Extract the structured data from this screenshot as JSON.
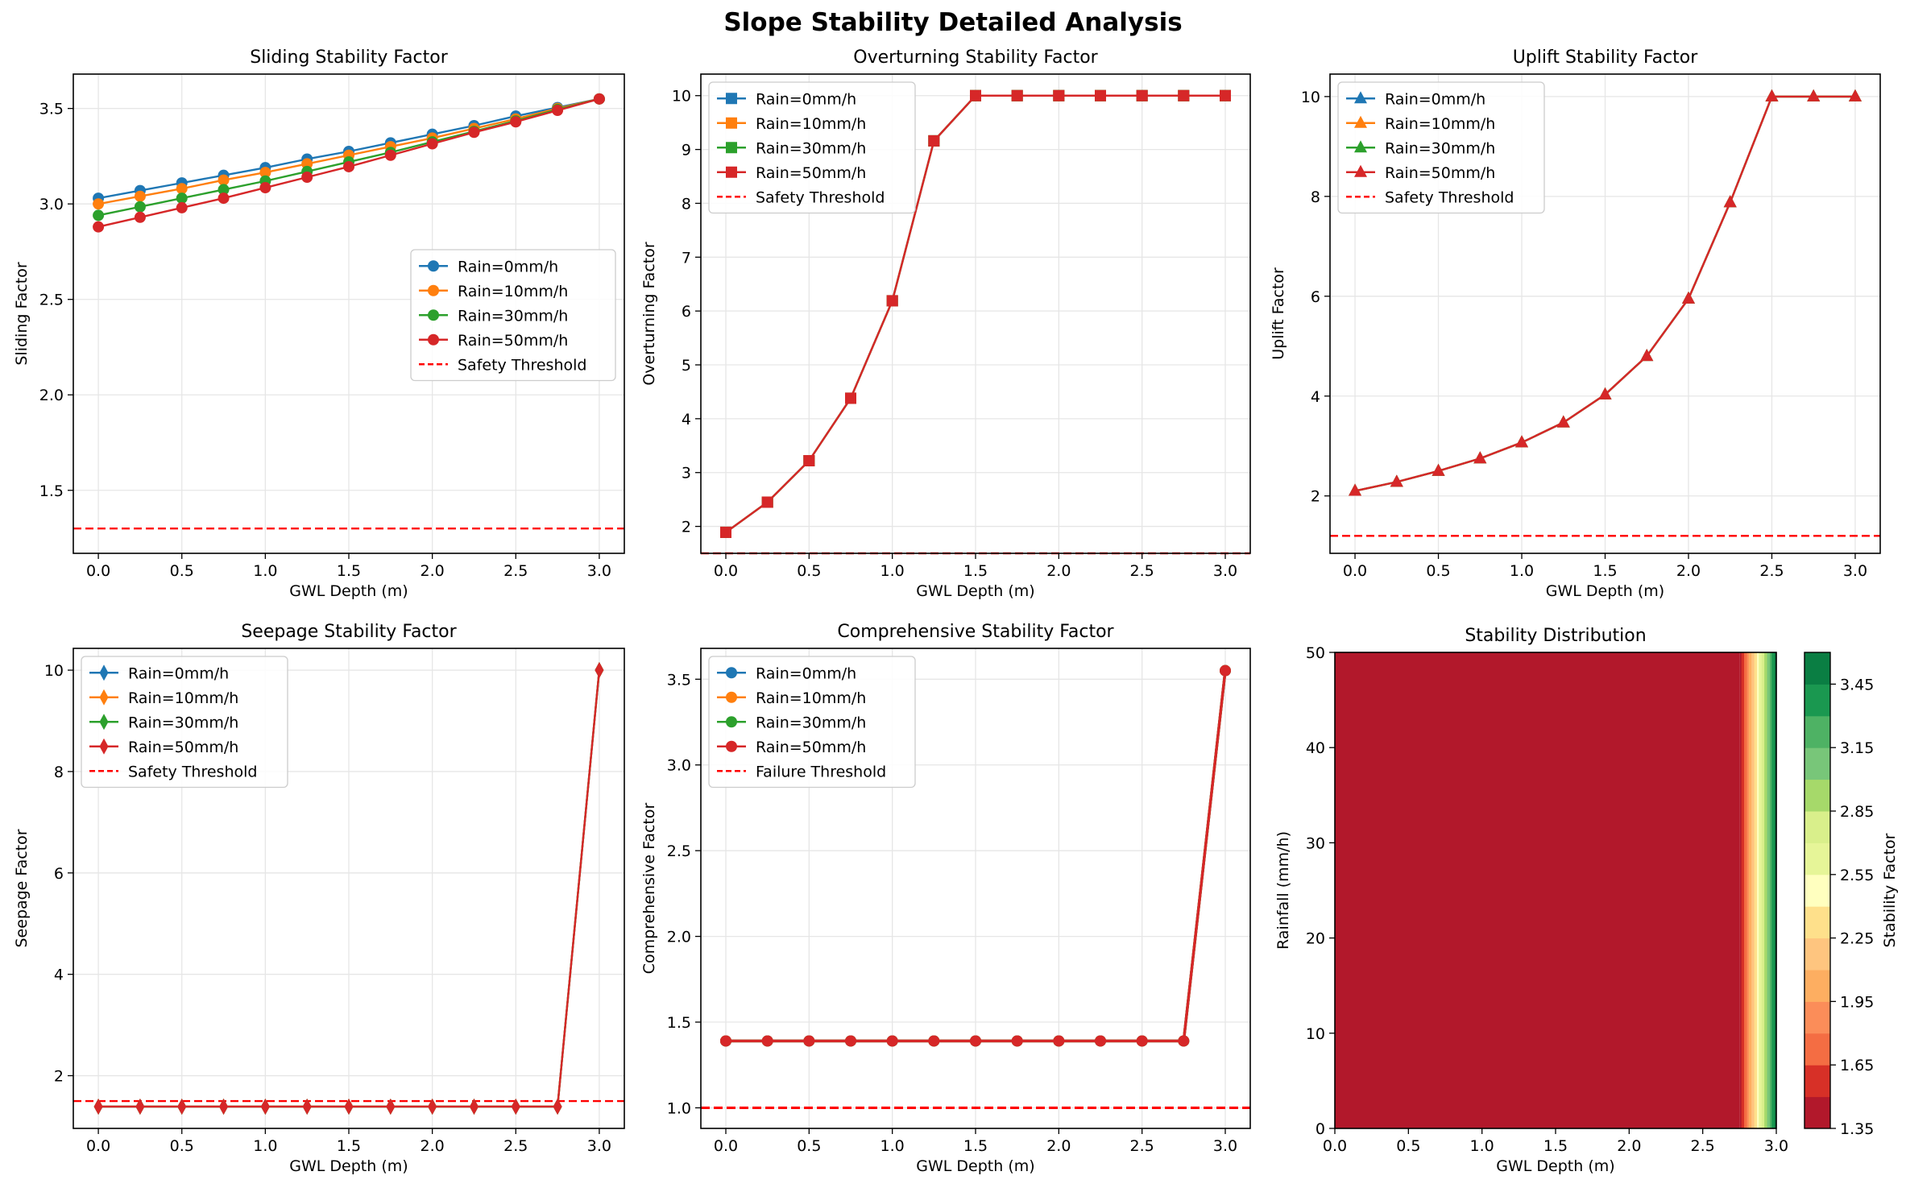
{
  "figure": {
    "title": "Slope Stability Detailed Analysis"
  },
  "colors": {
    "blue": "#1f77b4",
    "orange": "#ff7f0e",
    "green": "#2ca02c",
    "red": "#d62728",
    "threshold": "#ff0000"
  },
  "chart_data": [
    {
      "type": "line",
      "title": "Sliding Stability Factor",
      "xlabel": "GWL Depth (m)",
      "ylabel": "Sliding Factor",
      "xlim": [
        -0.15,
        3.15
      ],
      "ylim": [
        1.17,
        3.68
      ],
      "xticks": [
        "0.0",
        "0.5",
        "1.0",
        "1.5",
        "2.0",
        "2.5",
        "3.0"
      ],
      "yticks": [
        "1.5",
        "2.0",
        "2.5",
        "3.0",
        "3.5"
      ],
      "grid": true,
      "legend": "center-right",
      "marker": "o",
      "x": [
        0,
        0.25,
        0.5,
        0.75,
        1.0,
        1.25,
        1.5,
        1.75,
        2.0,
        2.25,
        2.5,
        2.75,
        3.0
      ],
      "series": [
        {
          "name": "Rain=0mm/h",
          "values": [
            3.03,
            3.07,
            3.11,
            3.15,
            3.19,
            3.235,
            3.275,
            3.32,
            3.365,
            3.41,
            3.46,
            3.505,
            3.55
          ]
        },
        {
          "name": "Rain=10mm/h",
          "values": [
            3.0,
            3.04,
            3.08,
            3.125,
            3.165,
            3.21,
            3.255,
            3.3,
            3.345,
            3.395,
            3.445,
            3.5,
            3.55
          ]
        },
        {
          "name": "Rain=30mm/h",
          "values": [
            2.94,
            2.985,
            3.03,
            3.075,
            3.12,
            3.17,
            3.22,
            3.27,
            3.325,
            3.38,
            3.435,
            3.495,
            3.55
          ]
        },
        {
          "name": "Rain=50mm/h",
          "values": [
            2.88,
            2.93,
            2.98,
            3.03,
            3.085,
            3.14,
            3.195,
            3.255,
            3.315,
            3.375,
            3.43,
            3.49,
            3.55
          ]
        }
      ],
      "threshold": {
        "name": "Safety Threshold",
        "value": 1.3
      }
    },
    {
      "type": "line",
      "title": "Overturning Stability Factor",
      "xlabel": "GWL Depth (m)",
      "ylabel": "Overturning Factor",
      "xlim": [
        -0.15,
        3.15
      ],
      "ylim": [
        1.5,
        10.4
      ],
      "xticks": [
        "0.0",
        "0.5",
        "1.0",
        "1.5",
        "2.0",
        "2.5",
        "3.0"
      ],
      "yticks": [
        "2",
        "3",
        "4",
        "5",
        "6",
        "7",
        "8",
        "9",
        "10"
      ],
      "grid": true,
      "legend": "top-left",
      "marker": "s",
      "x": [
        0,
        0.25,
        0.5,
        0.75,
        1.0,
        1.25,
        1.5,
        1.75,
        2.0,
        2.25,
        2.5,
        2.75,
        3.0
      ],
      "series": [
        {
          "name": "Rain=0mm/h",
          "values": [
            1.89,
            2.45,
            3.22,
            4.38,
            6.19,
            9.16,
            10,
            10,
            10,
            10,
            10,
            10,
            10
          ]
        },
        {
          "name": "Rain=10mm/h",
          "values": [
            1.89,
            2.45,
            3.22,
            4.38,
            6.19,
            9.16,
            10,
            10,
            10,
            10,
            10,
            10,
            10
          ]
        },
        {
          "name": "Rain=30mm/h",
          "values": [
            1.89,
            2.45,
            3.22,
            4.38,
            6.19,
            9.16,
            10,
            10,
            10,
            10,
            10,
            10,
            10
          ]
        },
        {
          "name": "Rain=50mm/h",
          "values": [
            1.89,
            2.45,
            3.22,
            4.38,
            6.19,
            9.16,
            10,
            10,
            10,
            10,
            10,
            10,
            10
          ]
        }
      ],
      "threshold": {
        "name": "Safety Threshold",
        "value": 1.5
      }
    },
    {
      "type": "line",
      "title": "Uplift Stability Factor",
      "xlabel": "GWL Depth (m)",
      "ylabel": "Uplift Factor",
      "xlim": [
        -0.15,
        3.15
      ],
      "ylim": [
        0.85,
        10.45
      ],
      "xticks": [
        "0.0",
        "0.5",
        "1.0",
        "1.5",
        "2.0",
        "2.5",
        "3.0"
      ],
      "yticks": [
        "2",
        "4",
        "6",
        "8",
        "10"
      ],
      "grid": true,
      "legend": "top-left",
      "marker": "^",
      "x": [
        0,
        0.25,
        0.5,
        0.75,
        1.0,
        1.25,
        1.5,
        1.75,
        2.0,
        2.25,
        2.5,
        2.75,
        3.0
      ],
      "series": [
        {
          "name": "Rain=0mm/h",
          "values": [
            2.1,
            2.28,
            2.5,
            2.75,
            3.07,
            3.47,
            4.03,
            4.8,
            5.95,
            7.88,
            10,
            10,
            10
          ]
        },
        {
          "name": "Rain=10mm/h",
          "values": [
            2.1,
            2.28,
            2.5,
            2.75,
            3.07,
            3.47,
            4.03,
            4.8,
            5.95,
            7.88,
            10,
            10,
            10
          ]
        },
        {
          "name": "Rain=30mm/h",
          "values": [
            2.1,
            2.28,
            2.5,
            2.75,
            3.07,
            3.47,
            4.03,
            4.8,
            5.95,
            7.88,
            10,
            10,
            10
          ]
        },
        {
          "name": "Rain=50mm/h",
          "values": [
            2.1,
            2.28,
            2.5,
            2.75,
            3.07,
            3.47,
            4.03,
            4.8,
            5.95,
            7.88,
            10,
            10,
            10
          ]
        }
      ],
      "threshold": {
        "name": "Safety Threshold",
        "value": 1.2
      }
    },
    {
      "type": "line",
      "title": "Seepage Stability Factor",
      "xlabel": "GWL Depth (m)",
      "ylabel": "Seepage Factor",
      "xlim": [
        -0.15,
        3.15
      ],
      "ylim": [
        0.96,
        10.43
      ],
      "xticks": [
        "0.0",
        "0.5",
        "1.0",
        "1.5",
        "2.0",
        "2.5",
        "3.0"
      ],
      "yticks": [
        "2",
        "4",
        "6",
        "8",
        "10"
      ],
      "grid": true,
      "legend": "top-left",
      "marker": "d",
      "x": [
        0,
        0.25,
        0.5,
        0.75,
        1.0,
        1.25,
        1.5,
        1.75,
        2.0,
        2.25,
        2.5,
        2.75,
        3.0
      ],
      "series": [
        {
          "name": "Rain=0mm/h",
          "values": [
            1.39,
            1.39,
            1.39,
            1.39,
            1.39,
            1.39,
            1.39,
            1.39,
            1.39,
            1.39,
            1.39,
            1.39,
            10
          ]
        },
        {
          "name": "Rain=10mm/h",
          "values": [
            1.39,
            1.39,
            1.39,
            1.39,
            1.39,
            1.39,
            1.39,
            1.39,
            1.39,
            1.39,
            1.39,
            1.39,
            10
          ]
        },
        {
          "name": "Rain=30mm/h",
          "values": [
            1.39,
            1.39,
            1.39,
            1.39,
            1.39,
            1.39,
            1.39,
            1.39,
            1.39,
            1.39,
            1.39,
            1.39,
            10
          ]
        },
        {
          "name": "Rain=50mm/h",
          "values": [
            1.39,
            1.39,
            1.39,
            1.39,
            1.39,
            1.39,
            1.39,
            1.39,
            1.39,
            1.39,
            1.39,
            1.39,
            10
          ]
        }
      ],
      "threshold": {
        "name": "Safety Threshold",
        "value": 1.5
      }
    },
    {
      "type": "line",
      "title": "Comprehensive Stability Factor",
      "xlabel": "GWL Depth (m)",
      "ylabel": "Comprehensive Factor",
      "xlim": [
        -0.15,
        3.15
      ],
      "ylim": [
        0.88,
        3.68
      ],
      "xticks": [
        "0.0",
        "0.5",
        "1.0",
        "1.5",
        "2.0",
        "2.5",
        "3.0"
      ],
      "yticks": [
        "1.0",
        "1.5",
        "2.0",
        "2.5",
        "3.0",
        "3.5"
      ],
      "grid": true,
      "legend": "top-left",
      "marker": "o",
      "x": [
        0,
        0.25,
        0.5,
        0.75,
        1.0,
        1.25,
        1.5,
        1.75,
        2.0,
        2.25,
        2.5,
        2.75,
        3.0
      ],
      "series": [
        {
          "name": "Rain=0mm/h",
          "values": [
            1.39,
            1.39,
            1.39,
            1.39,
            1.39,
            1.39,
            1.39,
            1.39,
            1.39,
            1.39,
            1.39,
            1.39,
            3.55
          ]
        },
        {
          "name": "Rain=10mm/h",
          "values": [
            1.39,
            1.39,
            1.39,
            1.39,
            1.39,
            1.39,
            1.39,
            1.39,
            1.39,
            1.39,
            1.39,
            1.39,
            3.55
          ]
        },
        {
          "name": "Rain=30mm/h",
          "values": [
            1.39,
            1.39,
            1.39,
            1.39,
            1.39,
            1.39,
            1.39,
            1.39,
            1.39,
            1.39,
            1.39,
            1.39,
            3.55
          ]
        },
        {
          "name": "Rain=50mm/h",
          "values": [
            1.39,
            1.39,
            1.39,
            1.39,
            1.39,
            1.39,
            1.39,
            1.39,
            1.39,
            1.39,
            1.39,
            1.39,
            3.55
          ]
        }
      ],
      "threshold": {
        "name": "Failure Threshold",
        "value": 1.0
      }
    },
    {
      "type": "heatmap",
      "title": "Stability Distribution",
      "xlabel": "GWL Depth (m)",
      "ylabel": "Rainfall (mm/h)",
      "xlim": [
        0,
        3.0
      ],
      "ylim": [
        0,
        50
      ],
      "xticks": [
        "0.0",
        "0.5",
        "1.0",
        "1.5",
        "2.0",
        "2.5",
        "3.0"
      ],
      "yticks": [
        "0",
        "10",
        "20",
        "30",
        "40",
        "50"
      ],
      "base_value": 1.39,
      "base_until_x": 2.75,
      "end_value": 3.55,
      "colorbar": {
        "label": "Stability Factor",
        "min": 1.35,
        "max": 3.6,
        "ticks": [
          "1.35",
          "1.65",
          "1.95",
          "2.25",
          "2.55",
          "2.85",
          "3.15",
          "3.45"
        ],
        "levels": [
          "#b2182b",
          "#d73027",
          "#f46d43",
          "#fb8d59",
          "#fdae61",
          "#fec57f",
          "#fee08b",
          "#ffffbf",
          "#e6f598",
          "#d9ef8b",
          "#a6d96a",
          "#78c679",
          "#4eb264",
          "#1a9850",
          "#0a7e43"
        ]
      }
    }
  ]
}
